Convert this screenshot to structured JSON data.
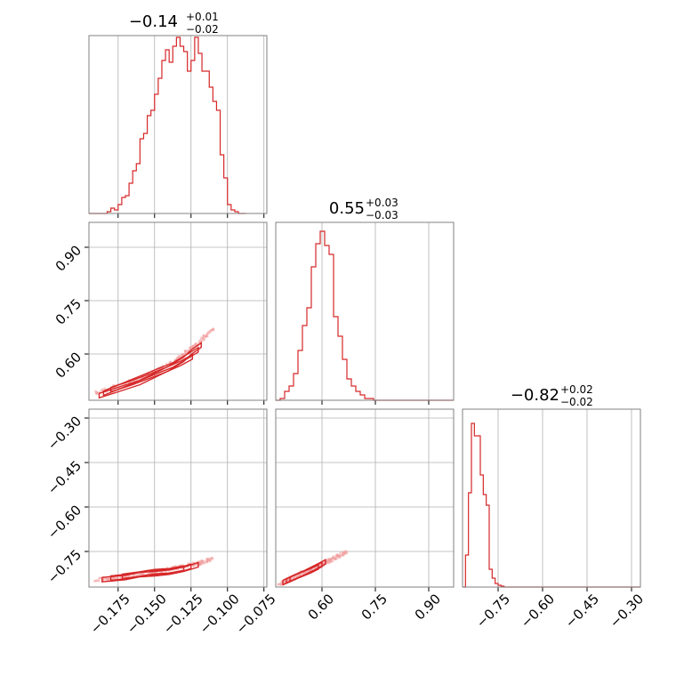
{
  "chart_data": {
    "type": "corner",
    "panels": {
      "p0": {
        "kind": "histogram",
        "title": {
          "main": "−0.14",
          "sup": "+0.01",
          "sub": "−0.02"
        },
        "xlim": [
          -0.195,
          -0.073
        ],
        "ylim": [
          0,
          1.0
        ],
        "bins": {
          "start": -0.195,
          "width": 0.0025,
          "counts": [
            0,
            0,
            0,
            0,
            0,
            0.01,
            0.03,
            0.02,
            0.05,
            0.09,
            0.1,
            0.17,
            0.24,
            0.28,
            0.42,
            0.45,
            0.55,
            0.58,
            0.67,
            0.76,
            0.86,
            0.92,
            0.85,
            0.94,
            0.99,
            0.94,
            0.91,
            0.8,
            0.86,
            0.99,
            0.9,
            0.8,
            0.8,
            0.71,
            0.63,
            0.58,
            0.33,
            0.2,
            0.05,
            0.02,
            0.01,
            0.0,
            0.0
          ]
        }
      },
      "p1": {
        "kind": "histogram",
        "title": {
          "main": "0.55",
          "sup": "+0.03",
          "sub": "−0.03"
        },
        "xlim": [
          0.47,
          0.97
        ],
        "ylim": [
          0,
          1.0
        ],
        "bins": {
          "start": 0.47,
          "width": 0.0125,
          "counts": [
            0.0,
            0.01,
            0.05,
            0.08,
            0.15,
            0.28,
            0.42,
            0.52,
            0.75,
            0.88,
            0.95,
            0.87,
            0.82,
            0.47,
            0.36,
            0.23,
            0.12,
            0.08,
            0.05,
            0.03,
            0.01,
            0.01,
            0.0,
            0.0,
            0.0,
            0.0,
            0.0,
            0.0,
            0.0,
            0.0,
            0.0,
            0.0,
            0.0,
            0.0,
            0.0,
            0.0,
            0.0,
            0.0,
            0.0,
            0.0
          ]
        }
      },
      "p2": {
        "kind": "histogram",
        "title": {
          "main": "−0.82",
          "sup": "+0.02",
          "sub": "−0.02"
        },
        "xlim": [
          -0.87,
          -0.27
        ],
        "ylim": [
          0,
          1.0
        ],
        "bins": {
          "start": -0.87,
          "width": 0.01,
          "counts": [
            0.0,
            0.18,
            0.53,
            0.92,
            0.85,
            0.85,
            0.63,
            0.52,
            0.46,
            0.1,
            0.05,
            0.02,
            0.01,
            0.005,
            0,
            0,
            0,
            0,
            0,
            0,
            0,
            0,
            0,
            0,
            0,
            0,
            0,
            0,
            0,
            0,
            0,
            0,
            0,
            0,
            0,
            0,
            0,
            0,
            0,
            0,
            0,
            0,
            0,
            0,
            0,
            0,
            0,
            0,
            0,
            0,
            0,
            0,
            0,
            0,
            0,
            0,
            0,
            0,
            0,
            0
          ]
        }
      },
      "s10": {
        "kind": "scatter-contour",
        "xlim": [
          -0.195,
          -0.073
        ],
        "ylim": [
          0.47,
          0.97
        ],
        "cloud_path": [
          [
            -0.19,
            0.49
          ],
          [
            -0.175,
            0.51
          ],
          [
            -0.16,
            0.53
          ],
          [
            -0.15,
            0.55
          ],
          [
            -0.14,
            0.57
          ],
          [
            -0.13,
            0.6
          ],
          [
            -0.12,
            0.63
          ],
          [
            -0.11,
            0.67
          ]
        ],
        "contours": [
          {
            "x": [
              -0.188,
              -0.175,
              -0.16,
              -0.15,
              -0.14,
              -0.13,
              -0.125,
              -0.118
            ],
            "y": [
              0.483,
              0.5,
              0.52,
              0.54,
              0.56,
              0.585,
              0.605,
              0.625
            ]
          },
          {
            "x": [
              -0.185,
              -0.17,
              -0.158,
              -0.148,
              -0.138,
              -0.128,
              -0.12
            ],
            "y": [
              0.49,
              0.515,
              0.535,
              0.552,
              0.568,
              0.592,
              0.612
            ]
          },
          {
            "x": [
              -0.18,
              -0.165,
              -0.152,
              -0.142,
              -0.132,
              -0.124
            ],
            "y": [
              0.5,
              0.52,
              0.54,
              0.556,
              0.574,
              0.592
            ]
          }
        ]
      },
      "s20": {
        "kind": "scatter-contour",
        "xlim": [
          -0.195,
          -0.073
        ],
        "ylim": [
          -0.87,
          -0.27
        ],
        "cloud_path": [
          [
            -0.19,
            -0.845
          ],
          [
            -0.17,
            -0.835
          ],
          [
            -0.15,
            -0.82
          ],
          [
            -0.135,
            -0.805
          ],
          [
            -0.12,
            -0.79
          ],
          [
            -0.11,
            -0.775
          ]
        ],
        "contours": [
          {
            "x": [
              -0.186,
              -0.17,
              -0.16,
              -0.15,
              -0.14,
              -0.13,
              -0.12
            ],
            "y": [
              -0.845,
              -0.838,
              -0.828,
              -0.825,
              -0.82,
              -0.81,
              -0.795
            ]
          },
          {
            "x": [
              -0.18,
              -0.165,
              -0.155,
              -0.145,
              -0.135,
              -0.125
            ],
            "y": [
              -0.84,
              -0.832,
              -0.822,
              -0.82,
              -0.815,
              -0.8
            ]
          },
          {
            "x": [
              -0.172,
              -0.16,
              -0.15,
              -0.14,
              -0.13
            ],
            "y": [
              -0.834,
              -0.826,
              -0.818,
              -0.815,
              -0.806
            ]
          }
        ]
      },
      "s21": {
        "kind": "scatter-contour",
        "xlim": [
          0.47,
          0.97
        ],
        "ylim": [
          -0.87,
          -0.27
        ],
        "cloud_path": [
          [
            0.48,
            -0.86
          ],
          [
            0.52,
            -0.84
          ],
          [
            0.55,
            -0.82
          ],
          [
            0.59,
            -0.8
          ],
          [
            0.63,
            -0.775
          ],
          [
            0.67,
            -0.75
          ]
        ],
        "contours": [
          {
            "x": [
              0.49,
              0.51,
              0.53,
              0.55,
              0.57,
              0.59,
              0.61
            ],
            "y": [
              -0.855,
              -0.843,
              -0.832,
              -0.822,
              -0.81,
              -0.798,
              -0.785
            ]
          },
          {
            "x": [
              0.5,
              0.52,
              0.54,
              0.56,
              0.58,
              0.6
            ],
            "y": [
              -0.85,
              -0.838,
              -0.828,
              -0.818,
              -0.806,
              -0.794
            ]
          },
          {
            "x": [
              0.51,
              0.53,
              0.55,
              0.57,
              0.59
            ],
            "y": [
              -0.845,
              -0.834,
              -0.824,
              -0.814,
              -0.802
            ]
          }
        ]
      }
    },
    "ticks": {
      "x0": [
        -0.175,
        -0.15,
        -0.125,
        -0.1,
        -0.075
      ],
      "x1": [
        0.6,
        0.75,
        0.9
      ],
      "x2": [
        -0.75,
        -0.6,
        -0.45,
        -0.3
      ],
      "y1": [
        0.6,
        0.75,
        0.9
      ],
      "y2": [
        -0.3,
        -0.45,
        -0.6,
        -0.75
      ]
    },
    "tick_labels": {
      "x0": [
        "−0.175",
        "−0.150",
        "−0.125",
        "−0.100",
        "−0.075"
      ],
      "x1": [
        "0.60",
        "0.75",
        "0.90"
      ],
      "x2": [
        "−0.75",
        "−0.60",
        "−0.45",
        "−0.30"
      ],
      "y1": [
        "0.60",
        "0.75",
        "0.90"
      ],
      "y2": [
        "−0.30",
        "−0.45",
        "−0.60",
        "−0.75"
      ]
    },
    "grid": true,
    "colors": {
      "line": "#d62728",
      "scatter": "#f2a0a0",
      "grid": "#b0b0b0",
      "frame": "#808080"
    }
  }
}
